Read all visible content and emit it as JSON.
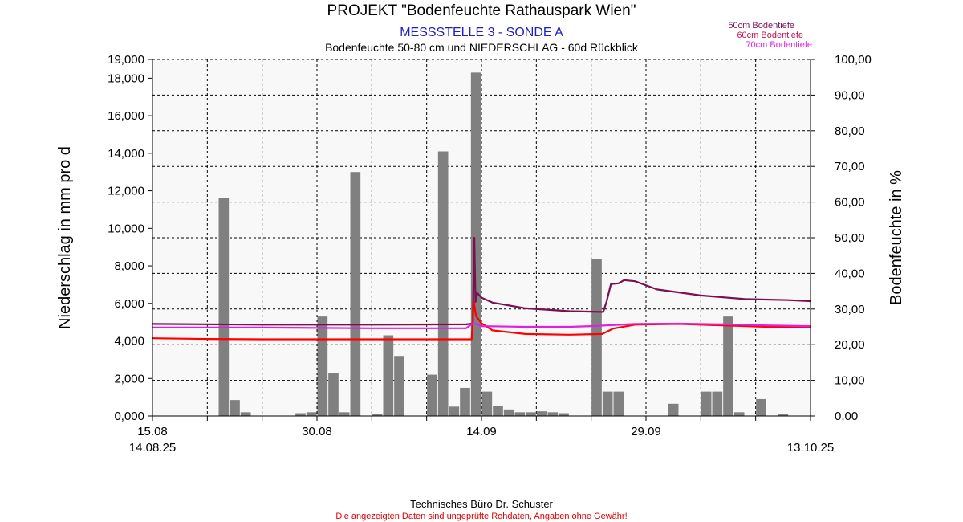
{
  "chart_data": {
    "type": "bar+line",
    "title": "PROJEKT \"Bodenfeuchte Rathauspark Wien\"",
    "subtitle": "MESSSTELLE 3 - SONDE A",
    "subtitle2": "Bodenfeuchte 50-80 cm und NIEDERSCHLAG - 60d Rückblick",
    "y_left_label": "Niederschlag in mm pro d",
    "y_right_label": "Bodenfeuchte in %",
    "y_left_ticks": [
      "0,000",
      "2,000",
      "4,000",
      "6,000",
      "8,000",
      "10,000",
      "12,000",
      "14,000",
      "16,000",
      "18,000",
      "19,000"
    ],
    "y_left_tick_values": [
      0,
      2,
      4,
      6,
      8,
      10,
      12,
      14,
      16,
      18,
      19
    ],
    "y_right_ticks": [
      "0,00",
      "10,00",
      "20,00",
      "30,00",
      "40,00",
      "50,00",
      "60,00",
      "70,00",
      "80,00",
      "90,00",
      "100,00"
    ],
    "y_right_tick_values": [
      0,
      10,
      20,
      30,
      40,
      50,
      60,
      70,
      80,
      90,
      100
    ],
    "ylim_left": [
      0,
      19
    ],
    "ylim_right": [
      0,
      100
    ],
    "x_ticks": [
      {
        "day": 0,
        "label": "15.08"
      },
      {
        "day": 15,
        "label": "30.08"
      },
      {
        "day": 30,
        "label": "14.09"
      },
      {
        "day": 45,
        "label": "29.09"
      }
    ],
    "x_range_start": "14.08.25",
    "x_range_end": "13.10.25",
    "x_unit": "days since 15.08",
    "xlim": [
      0,
      60
    ],
    "grid": true,
    "precipitation": {
      "name": "Niederschlag",
      "color": "#808080",
      "bars": [
        {
          "day": 6,
          "v": 11.6
        },
        {
          "day": 7,
          "v": 0.85
        },
        {
          "day": 8,
          "v": 0.2
        },
        {
          "day": 13,
          "v": 0.15
        },
        {
          "day": 14,
          "v": 0.2
        },
        {
          "day": 15,
          "v": 5.3
        },
        {
          "day": 16,
          "v": 2.3
        },
        {
          "day": 17,
          "v": 0.2
        },
        {
          "day": 18,
          "v": 13.0
        },
        {
          "day": 20,
          "v": 0.1
        },
        {
          "day": 21,
          "v": 4.3
        },
        {
          "day": 22,
          "v": 3.2
        },
        {
          "day": 25,
          "v": 2.2
        },
        {
          "day": 26,
          "v": 14.1
        },
        {
          "day": 27,
          "v": 0.5
        },
        {
          "day": 28,
          "v": 1.5
        },
        {
          "day": 29,
          "v": 18.3
        },
        {
          "day": 30,
          "v": 1.3
        },
        {
          "day": 31,
          "v": 0.55
        },
        {
          "day": 32,
          "v": 0.35
        },
        {
          "day": 33,
          "v": 0.2
        },
        {
          "day": 34,
          "v": 0.2
        },
        {
          "day": 35,
          "v": 0.25
        },
        {
          "day": 36,
          "v": 0.2
        },
        {
          "day": 37,
          "v": 0.15
        },
        {
          "day": 40,
          "v": 8.35
        },
        {
          "day": 41,
          "v": 1.3
        },
        {
          "day": 42,
          "v": 1.3
        },
        {
          "day": 47,
          "v": 0.65
        },
        {
          "day": 50,
          "v": 1.3
        },
        {
          "day": 51,
          "v": 1.3
        },
        {
          "day": 52,
          "v": 5.3
        },
        {
          "day": 53,
          "v": 0.2
        },
        {
          "day": 55,
          "v": 0.9
        },
        {
          "day": 57,
          "v": 0.1
        }
      ]
    },
    "series": [
      {
        "name": "50cm Bodentiefe",
        "color": "#7a1050",
        "points": [
          [
            0,
            25.8
          ],
          [
            10,
            25.6
          ],
          [
            20,
            25.6
          ],
          [
            28.6,
            25.7
          ],
          [
            29.2,
            25.9
          ],
          [
            29.35,
            50.0
          ],
          [
            29.45,
            32.0
          ],
          [
            29.6,
            34.5
          ],
          [
            30,
            33.2
          ],
          [
            31,
            31.8
          ],
          [
            34,
            30.2
          ],
          [
            38,
            29.4
          ],
          [
            40.9,
            29.2
          ],
          [
            41.1,
            29.2
          ],
          [
            41.4,
            32.0
          ],
          [
            41.8,
            37.0
          ],
          [
            42.5,
            37.2
          ],
          [
            43,
            38.1
          ],
          [
            44,
            37.8
          ],
          [
            46,
            35.5
          ],
          [
            50,
            33.8
          ],
          [
            54,
            32.8
          ],
          [
            58,
            32.5
          ],
          [
            60,
            32.2
          ]
        ]
      },
      {
        "name": "60cm Bodentiefe",
        "color": "#ff0000",
        "points": [
          [
            0,
            21.8
          ],
          [
            5,
            21.6
          ],
          [
            10,
            21.5
          ],
          [
            20,
            21.5
          ],
          [
            29,
            21.5
          ],
          [
            29.1,
            21.5
          ],
          [
            29.3,
            32.0
          ],
          [
            29.5,
            28.0
          ],
          [
            30,
            26.0
          ],
          [
            31,
            24.0
          ],
          [
            34,
            23.0
          ],
          [
            38,
            22.8
          ],
          [
            41,
            23.0
          ],
          [
            42,
            24.5
          ],
          [
            44,
            25.6
          ],
          [
            48,
            25.8
          ],
          [
            52,
            25.4
          ],
          [
            56,
            25.0
          ],
          [
            60,
            25.0
          ]
        ]
      },
      {
        "name": "70cm Bodentiefe",
        "color": "#e020e0",
        "points": [
          [
            0,
            24.8
          ],
          [
            10,
            24.8
          ],
          [
            20,
            24.6
          ],
          [
            28.6,
            24.6
          ],
          [
            29.2,
            26.0
          ],
          [
            29.5,
            25.8
          ],
          [
            30,
            25.2
          ],
          [
            34,
            25.0
          ],
          [
            38,
            25.0
          ],
          [
            40,
            25.2
          ],
          [
            44,
            25.8
          ],
          [
            48,
            25.9
          ],
          [
            52,
            25.7
          ],
          [
            56,
            25.4
          ],
          [
            60,
            25.2
          ]
        ]
      }
    ],
    "legend_position": "top-right"
  },
  "footer": {
    "credit": "Technisches Büro Dr. Schuster",
    "disclaimer": "Die angezeigten Daten sind ungeprüfte Rohdaten, Angaben ohne Gewähr!"
  },
  "colors": {
    "title": "#000000",
    "subtitle": "#2020c0",
    "disclaimer": "#e00000",
    "grid": "#000000",
    "plot_bg": "#f8f8f8"
  }
}
